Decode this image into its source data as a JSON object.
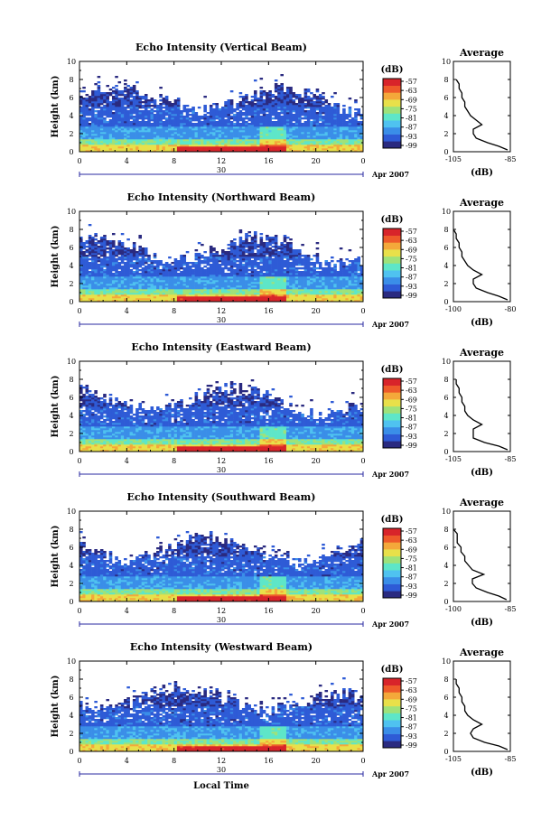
{
  "chart_data": {
    "type": "heatmap",
    "layout": "five stacked panels, each a time-height echo intensity image with a colorbar and an average profile",
    "date_label": "Apr 2007",
    "day_label": "30",
    "xlabel": "Local Time",
    "x_ticks": [
      "0",
      "4",
      "8",
      "12",
      "16",
      "20",
      "0"
    ],
    "xlim": [
      0,
      24
    ],
    "ylabel": "Height (km)",
    "y_ticks": [
      "0",
      "2",
      "4",
      "6",
      "8",
      "10"
    ],
    "ylim": [
      0,
      10
    ],
    "colorbar": {
      "unit_label": "(dB)",
      "ticks": [
        "-57",
        "-63",
        "-69",
        "-75",
        "-81",
        "-87",
        "-93",
        "-99"
      ],
      "range": [
        -99,
        -57
      ],
      "colormap": [
        "#2a2a80",
        "#2e5bd6",
        "#3a8ee8",
        "#4fc2f0",
        "#5ee6c8",
        "#9ee27a",
        "#e8e04a",
        "#f4a83a",
        "#ee5a2a",
        "#d8242a"
      ]
    },
    "panels": [
      {
        "title": "Echo Intensity (Vertical Beam)",
        "profile_title": "Average",
        "profile_xlabel": "(dB)",
        "profile_xticks": [
          "-105",
          "-85"
        ],
        "profile_xlim": [
          -105,
          -85
        ],
        "profile": {
          "height": [
            0.2,
            0.6,
            1.0,
            1.5,
            2.0,
            2.5,
            3.0,
            3.5,
            4.0,
            4.5,
            5.0,
            5.5,
            6.0,
            6.5,
            7.0,
            7.5,
            8.0
          ],
          "db": [
            -86,
            -89,
            -93,
            -97,
            -98,
            -98,
            -95,
            -97,
            -99,
            -100,
            -101,
            -101,
            -102,
            -102,
            -103,
            -103,
            -104
          ]
        }
      },
      {
        "title": "Echo Intensity (Northward Beam)",
        "profile_title": "Average",
        "profile_xlabel": "(dB)",
        "profile_xticks": [
          "-100",
          "-80"
        ],
        "profile_xlim": [
          -100,
          -80
        ],
        "profile": {
          "height": [
            0.2,
            0.6,
            1.0,
            1.5,
            2.0,
            2.5,
            3.0,
            3.5,
            4.0,
            4.5,
            5.0,
            5.5,
            6.0,
            6.5,
            7.0,
            7.5,
            8.0
          ],
          "db": [
            -81,
            -84,
            -88,
            -92,
            -93,
            -93,
            -90,
            -93,
            -95,
            -96,
            -97,
            -97,
            -98,
            -98,
            -99,
            -99,
            -100
          ]
        }
      },
      {
        "title": "Echo Intensity (Eastward Beam)",
        "profile_title": "Average",
        "profile_xlabel": "(dB)",
        "profile_xticks": [
          "-105",
          "-85"
        ],
        "profile_xlim": [
          -105,
          -85
        ],
        "profile": {
          "height": [
            0.2,
            0.6,
            1.0,
            1.5,
            2.0,
            2.5,
            3.0,
            3.5,
            4.0,
            4.5,
            5.0,
            5.5,
            6.0,
            6.5,
            7.0,
            7.5,
            8.0
          ],
          "db": [
            -86,
            -89,
            -94,
            -98,
            -98,
            -98,
            -95,
            -98,
            -100,
            -101,
            -101,
            -102,
            -102,
            -103,
            -103,
            -104,
            -104
          ]
        }
      },
      {
        "title": "Echo Intensity (Southward Beam)",
        "profile_title": "Average",
        "profile_xlabel": "(dB)",
        "profile_xticks": [
          "-100",
          "-85"
        ],
        "profile_xlim": [
          -100,
          -85
        ],
        "profile": {
          "height": [
            0.2,
            0.6,
            1.0,
            1.5,
            2.0,
            2.5,
            3.0,
            3.5,
            4.0,
            4.5,
            5.0,
            5.5,
            6.0,
            6.5,
            7.0,
            7.5,
            8.0
          ],
          "db": [
            -86,
            -88,
            -91,
            -94,
            -95,
            -95,
            -92,
            -95,
            -96,
            -97,
            -97,
            -98,
            -98,
            -99,
            -99,
            -99,
            -100
          ]
        }
      },
      {
        "title": "Echo Intensity (Westward Beam)",
        "profile_title": "Average",
        "profile_xlabel": "(dB)",
        "profile_xticks": [
          "-105",
          "-85"
        ],
        "profile_xlim": [
          -105,
          -85
        ],
        "profile": {
          "height": [
            0.2,
            0.6,
            1.0,
            1.5,
            2.0,
            2.5,
            3.0,
            3.5,
            4.0,
            4.5,
            5.0,
            5.5,
            6.0,
            6.5,
            7.0,
            7.5,
            8.0
          ],
          "db": [
            -86,
            -89,
            -94,
            -98,
            -99,
            -98,
            -95,
            -98,
            -100,
            -101,
            -101,
            -102,
            -102,
            -103,
            -103,
            -104,
            -104
          ]
        }
      }
    ]
  }
}
